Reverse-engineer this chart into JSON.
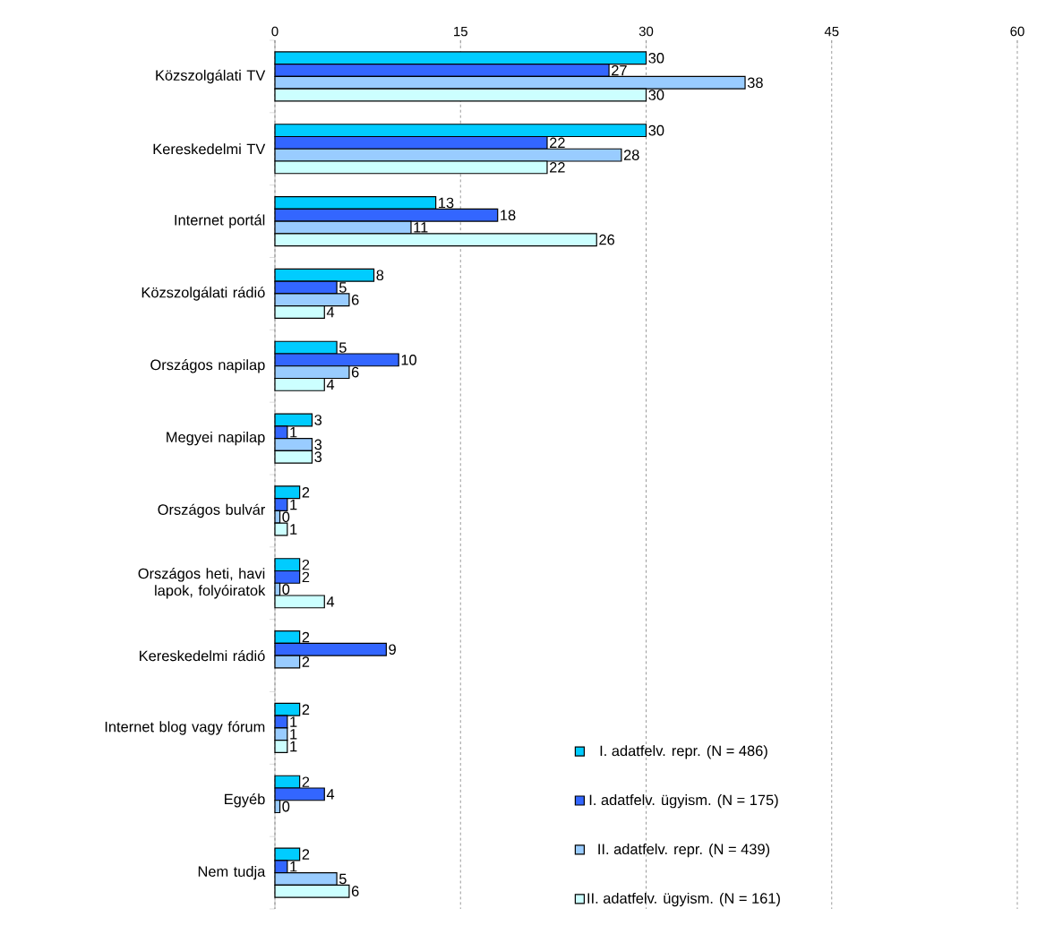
{
  "chart_data": {
    "type": "bar",
    "orientation": "horizontal",
    "categories": [
      "Közszolgálati TV",
      "Kereskedelmi TV",
      "Internet portál",
      "Közszolgálati rádió",
      "Országos napilap",
      "Megyei napilap",
      "Országos bulvár",
      "Országos heti, havi lapok, folyóiratok",
      "Kereskedelmi rádió",
      "Internet blog vagy fórum",
      "Egyéb",
      "Nem tudja"
    ],
    "series": [
      {
        "name": "I. adatfelv. repr. (N = 486)",
        "color": "#00ccff",
        "values": [
          30,
          30,
          13,
          8,
          5,
          3,
          2,
          2,
          2,
          2,
          2,
          2
        ]
      },
      {
        "name": "I. adatfelv. ügyism. (N = 175)",
        "color": "#3366ff",
        "values": [
          27,
          22,
          18,
          5,
          10,
          1,
          1,
          2,
          9,
          1,
          4,
          1
        ]
      },
      {
        "name": "II. adatfelv. repr. (N = 439)",
        "color": "#99ccff",
        "values": [
          38,
          28,
          11,
          6,
          6,
          3,
          0.4,
          0.4,
          2,
          1,
          0.4,
          5
        ],
        "value_labels": [
          "38",
          "28",
          "11",
          "6",
          "6",
          "3",
          "0",
          "0",
          "2",
          "1",
          "0",
          "5"
        ]
      },
      {
        "name": "II. adatfelv. ügyism. (N = 161)",
        "color": "#ccffff",
        "values": [
          30,
          22,
          26,
          4,
          4,
          3,
          1,
          4,
          null,
          1,
          null,
          6
        ]
      }
    ],
    "xlim": [
      0,
      60
    ],
    "xticks": [
      0,
      15,
      30,
      45,
      60
    ],
    "grid": "x",
    "legend": "bottom right",
    "data_labels": true
  }
}
